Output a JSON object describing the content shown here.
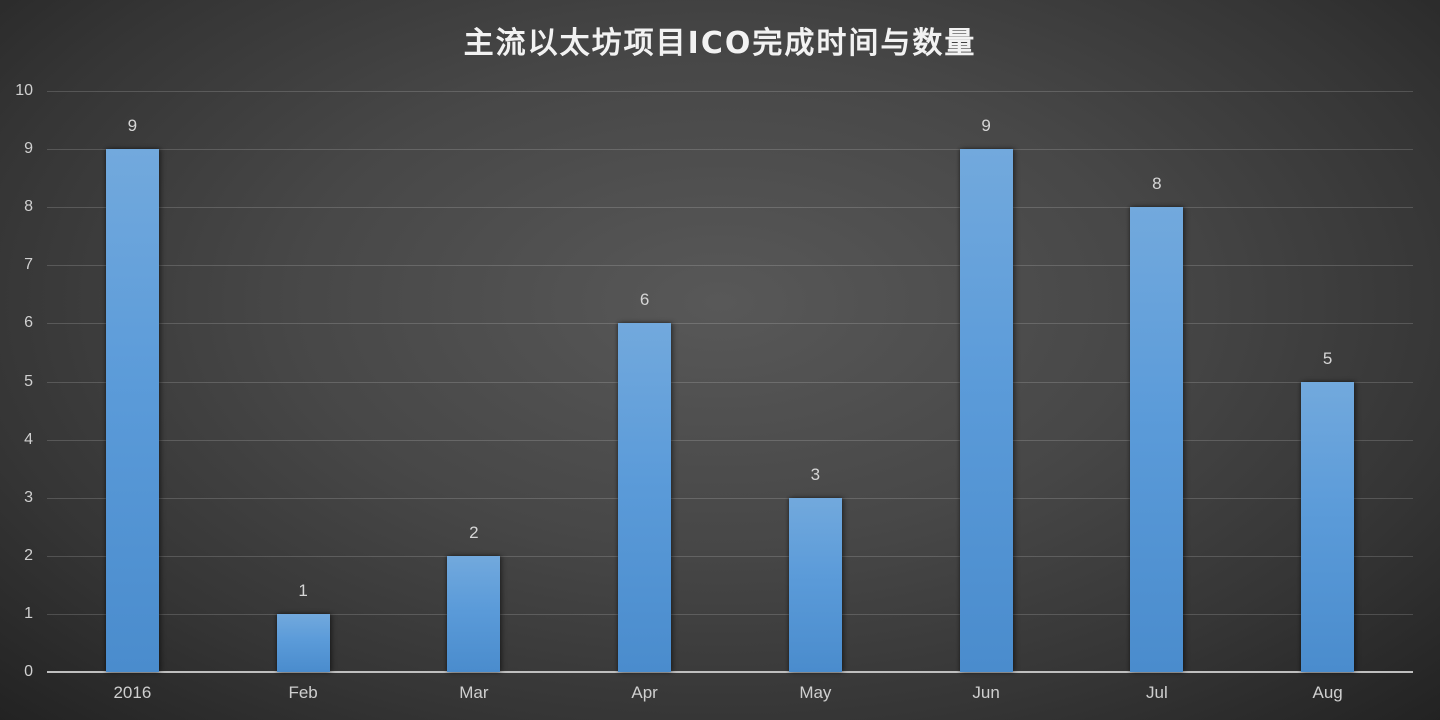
{
  "chart_data": {
    "type": "bar",
    "title": "主流以太坊项目ICO完成时间与数量",
    "categories": [
      "2016",
      "Feb",
      "Mar",
      "Apr",
      "May",
      "Jun",
      "Jul",
      "Aug"
    ],
    "values": [
      9,
      1,
      2,
      6,
      3,
      9,
      8,
      5
    ],
    "xlabel": "",
    "ylabel": "",
    "ylim": [
      0,
      10
    ],
    "yticks": [
      0,
      1,
      2,
      3,
      4,
      5,
      6,
      7,
      8,
      9,
      10
    ],
    "grid": true,
    "data_labels": true,
    "legend": "none",
    "bar_color": "#5b9bd9",
    "background": "#474747"
  }
}
